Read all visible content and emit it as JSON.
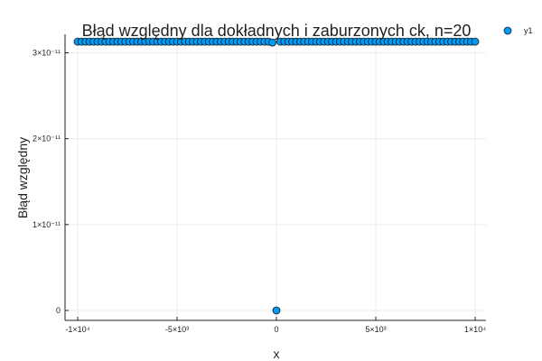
{
  "chart_data": {
    "type": "scatter",
    "title": "Błąd względny dla dokładnych i zaburzonych ck, n=20",
    "xlabel": "x",
    "ylabel": "Błąd względny",
    "xlim": [
      -10000,
      10000
    ],
    "ylim": [
      0,
      3.1e-11
    ],
    "x_ticks": [
      {
        "value": -10000,
        "label": "-1×10⁴"
      },
      {
        "value": -5000,
        "label": "-5×10³"
      },
      {
        "value": 0,
        "label": "0"
      },
      {
        "value": 5000,
        "label": "5×10³"
      },
      {
        "value": 10000,
        "label": "1×10⁴"
      }
    ],
    "y_ticks": [
      {
        "value": 0,
        "label": "0"
      },
      {
        "value": 1e-11,
        "label": "1×10⁻¹¹"
      },
      {
        "value": 2e-11,
        "label": "2×10⁻¹¹"
      },
      {
        "value": 3e-11,
        "label": "3×10⁻¹¹"
      }
    ],
    "grid": true,
    "legend": {
      "position": "top-right"
    },
    "marker_color": "#009af9",
    "series": [
      {
        "name": "y1",
        "points": [
          {
            "x": -10000,
            "y": 3.13e-11
          },
          {
            "x": -9800,
            "y": 3.13e-11
          },
          {
            "x": -9600,
            "y": 3.13e-11
          },
          {
            "x": -9400,
            "y": 3.13e-11
          },
          {
            "x": -9200,
            "y": 3.13e-11
          },
          {
            "x": -9000,
            "y": 3.13e-11
          },
          {
            "x": -8800,
            "y": 3.13e-11
          },
          {
            "x": -8600,
            "y": 3.13e-11
          },
          {
            "x": -8400,
            "y": 3.13e-11
          },
          {
            "x": -8200,
            "y": 3.13e-11
          },
          {
            "x": -8000,
            "y": 3.13e-11
          },
          {
            "x": -7800,
            "y": 3.13e-11
          },
          {
            "x": -7600,
            "y": 3.13e-11
          },
          {
            "x": -7400,
            "y": 3.13e-11
          },
          {
            "x": -7200,
            "y": 3.13e-11
          },
          {
            "x": -7000,
            "y": 3.13e-11
          },
          {
            "x": -6800,
            "y": 3.13e-11
          },
          {
            "x": -6600,
            "y": 3.13e-11
          },
          {
            "x": -6400,
            "y": 3.13e-11
          },
          {
            "x": -6200,
            "y": 3.13e-11
          },
          {
            "x": -6000,
            "y": 3.13e-11
          },
          {
            "x": -5800,
            "y": 3.13e-11
          },
          {
            "x": -5600,
            "y": 3.13e-11
          },
          {
            "x": -5400,
            "y": 3.13e-11
          },
          {
            "x": -5200,
            "y": 3.13e-11
          },
          {
            "x": -5000,
            "y": 3.13e-11
          },
          {
            "x": -4800,
            "y": 3.13e-11
          },
          {
            "x": -4600,
            "y": 3.13e-11
          },
          {
            "x": -4400,
            "y": 3.13e-11
          },
          {
            "x": -4200,
            "y": 3.13e-11
          },
          {
            "x": -4000,
            "y": 3.13e-11
          },
          {
            "x": -3800,
            "y": 3.13e-11
          },
          {
            "x": -3600,
            "y": 3.13e-11
          },
          {
            "x": -3400,
            "y": 3.13e-11
          },
          {
            "x": -3200,
            "y": 3.13e-11
          },
          {
            "x": -3000,
            "y": 3.13e-11
          },
          {
            "x": -2800,
            "y": 3.13e-11
          },
          {
            "x": -2600,
            "y": 3.13e-11
          },
          {
            "x": -2400,
            "y": 3.13e-11
          },
          {
            "x": -2200,
            "y": 3.13e-11
          },
          {
            "x": -2000,
            "y": 3.13e-11
          },
          {
            "x": -1800,
            "y": 3.13e-11
          },
          {
            "x": -1600,
            "y": 3.13e-11
          },
          {
            "x": -1400,
            "y": 3.13e-11
          },
          {
            "x": -1200,
            "y": 3.13e-11
          },
          {
            "x": -1000,
            "y": 3.13e-11
          },
          {
            "x": -800,
            "y": 3.13e-11
          },
          {
            "x": -600,
            "y": 3.13e-11
          },
          {
            "x": -400,
            "y": 3.13e-11
          },
          {
            "x": -200,
            "y": 3.12e-11
          },
          {
            "x": 0,
            "y": 0
          },
          {
            "x": 200,
            "y": 3.13e-11
          },
          {
            "x": 400,
            "y": 3.13e-11
          },
          {
            "x": 600,
            "y": 3.13e-11
          },
          {
            "x": 800,
            "y": 3.13e-11
          },
          {
            "x": 1000,
            "y": 3.13e-11
          },
          {
            "x": 1200,
            "y": 3.13e-11
          },
          {
            "x": 1400,
            "y": 3.13e-11
          },
          {
            "x": 1600,
            "y": 3.13e-11
          },
          {
            "x": 1800,
            "y": 3.13e-11
          },
          {
            "x": 2000,
            "y": 3.13e-11
          },
          {
            "x": 2200,
            "y": 3.13e-11
          },
          {
            "x": 2400,
            "y": 3.13e-11
          },
          {
            "x": 2600,
            "y": 3.13e-11
          },
          {
            "x": 2800,
            "y": 3.13e-11
          },
          {
            "x": 3000,
            "y": 3.13e-11
          },
          {
            "x": 3200,
            "y": 3.13e-11
          },
          {
            "x": 3400,
            "y": 3.13e-11
          },
          {
            "x": 3600,
            "y": 3.13e-11
          },
          {
            "x": 3800,
            "y": 3.13e-11
          },
          {
            "x": 4000,
            "y": 3.13e-11
          },
          {
            "x": 4200,
            "y": 3.13e-11
          },
          {
            "x": 4400,
            "y": 3.13e-11
          },
          {
            "x": 4600,
            "y": 3.13e-11
          },
          {
            "x": 4800,
            "y": 3.13e-11
          },
          {
            "x": 5000,
            "y": 3.13e-11
          },
          {
            "x": 5200,
            "y": 3.13e-11
          },
          {
            "x": 5400,
            "y": 3.13e-11
          },
          {
            "x": 5600,
            "y": 3.13e-11
          },
          {
            "x": 5800,
            "y": 3.13e-11
          },
          {
            "x": 6000,
            "y": 3.13e-11
          },
          {
            "x": 6200,
            "y": 3.13e-11
          },
          {
            "x": 6400,
            "y": 3.13e-11
          },
          {
            "x": 6600,
            "y": 3.13e-11
          },
          {
            "x": 6800,
            "y": 3.13e-11
          },
          {
            "x": 7000,
            "y": 3.13e-11
          },
          {
            "x": 7200,
            "y": 3.13e-11
          },
          {
            "x": 7400,
            "y": 3.13e-11
          },
          {
            "x": 7600,
            "y": 3.13e-11
          },
          {
            "x": 7800,
            "y": 3.13e-11
          },
          {
            "x": 8000,
            "y": 3.13e-11
          },
          {
            "x": 8200,
            "y": 3.13e-11
          },
          {
            "x": 8400,
            "y": 3.13e-11
          },
          {
            "x": 8600,
            "y": 3.13e-11
          },
          {
            "x": 8800,
            "y": 3.13e-11
          },
          {
            "x": 9000,
            "y": 3.13e-11
          },
          {
            "x": 9200,
            "y": 3.13e-11
          },
          {
            "x": 9400,
            "y": 3.13e-11
          },
          {
            "x": 9600,
            "y": 3.13e-11
          },
          {
            "x": 9800,
            "y": 3.13e-11
          },
          {
            "x": 10000,
            "y": 3.13e-11
          }
        ]
      }
    ]
  }
}
